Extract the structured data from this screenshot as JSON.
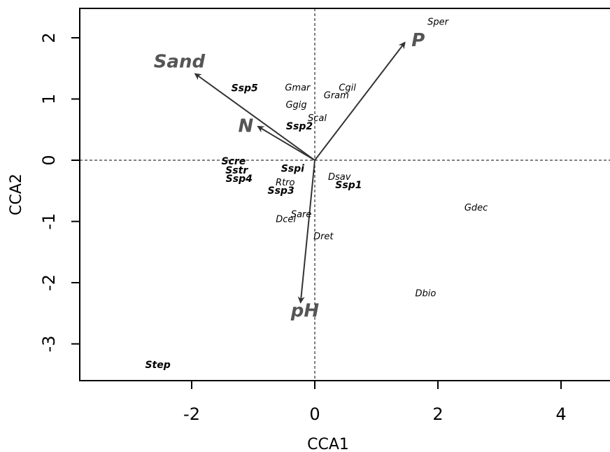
{
  "chart_data": {
    "type": "scatter",
    "xlabel": "CCA1",
    "ylabel": "CCA2",
    "xlim": [
      -3.8,
      4.8
    ],
    "ylim": [
      -3.6,
      2.5
    ],
    "x_ticks": [
      -2,
      0,
      2,
      4
    ],
    "y_ticks": [
      -3,
      -2,
      -1,
      0,
      1,
      2
    ],
    "reference_lines": {
      "x": 0,
      "y": 0,
      "style": "dashed"
    },
    "colors": {
      "arrow": "#333333",
      "env_label": "#555555",
      "species_label": "#000000"
    },
    "species": [
      {
        "name": "Sper",
        "x": 2.0,
        "y": 2.25,
        "bold": false
      },
      {
        "name": "Gmar",
        "x": -0.28,
        "y": 1.18,
        "bold": false
      },
      {
        "name": "Cgil",
        "x": 0.53,
        "y": 1.18,
        "bold": false
      },
      {
        "name": "Gram",
        "x": 0.35,
        "y": 1.05,
        "bold": false
      },
      {
        "name": "Ggig",
        "x": -0.3,
        "y": 0.9,
        "bold": false
      },
      {
        "name": "Scal",
        "x": 0.04,
        "y": 0.68,
        "bold": false
      },
      {
        "name": "Ssp5",
        "x": -1.14,
        "y": 1.17,
        "bold": true
      },
      {
        "name": "Ssp2",
        "x": -0.25,
        "y": 0.55,
        "bold": true
      },
      {
        "name": "Scre",
        "x": -1.32,
        "y": -0.02,
        "bold": true
      },
      {
        "name": "Sstr",
        "x": -1.27,
        "y": -0.17,
        "bold": true
      },
      {
        "name": "Ssp4",
        "x": -1.23,
        "y": -0.31,
        "bold": true
      },
      {
        "name": "Sspi",
        "x": -0.36,
        "y": -0.14,
        "bold": true
      },
      {
        "name": "Dsav",
        "x": 0.4,
        "y": -0.28,
        "bold": false
      },
      {
        "name": "Ssp1",
        "x": 0.55,
        "y": -0.41,
        "bold": true
      },
      {
        "name": "Rtro",
        "x": -0.48,
        "y": -0.37,
        "bold": false
      },
      {
        "name": "Ssp3",
        "x": -0.55,
        "y": -0.5,
        "bold": true
      },
      {
        "name": "Sare",
        "x": -0.22,
        "y": -0.89,
        "bold": false
      },
      {
        "name": "Dcel",
        "x": -0.47,
        "y": -0.97,
        "bold": false
      },
      {
        "name": "Dret",
        "x": 0.14,
        "y": -1.25,
        "bold": false
      },
      {
        "name": "Gdec",
        "x": 2.62,
        "y": -0.78,
        "bold": false
      },
      {
        "name": "Dbio",
        "x": 1.8,
        "y": -2.18,
        "bold": false
      },
      {
        "name": "Step",
        "x": -2.55,
        "y": -3.35,
        "bold": true
      }
    ],
    "env_vectors": [
      {
        "name": "Sand",
        "x": -1.94,
        "y": 1.41,
        "label_x": -2.2,
        "label_y": 1.6,
        "size": 26
      },
      {
        "name": "N",
        "x": -0.92,
        "y": 0.55,
        "label_x": -1.12,
        "label_y": 0.55,
        "size": 26
      },
      {
        "name": "P",
        "x": 1.46,
        "y": 1.92,
        "label_x": 1.68,
        "label_y": 1.95,
        "size": 26
      },
      {
        "name": "pH",
        "x": -0.23,
        "y": -2.32,
        "label_x": -0.16,
        "label_y": -2.47,
        "size": 26
      }
    ]
  }
}
